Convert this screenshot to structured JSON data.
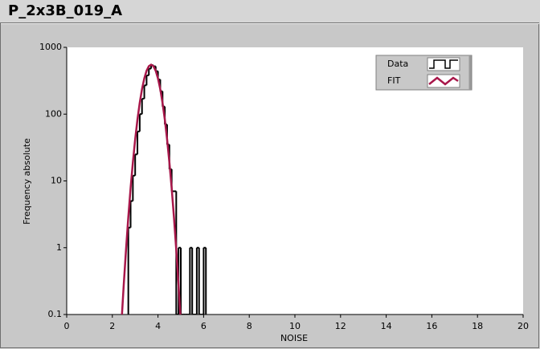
{
  "chart_data": {
    "type": "histogram",
    "title": "P_2x3B_019_A",
    "x_label": "NOISE",
    "y_label": "Frequency absolute",
    "xlim": [
      0,
      20
    ],
    "xticks": [
      0,
      2,
      4,
      6,
      8,
      10,
      12,
      14,
      16,
      18,
      20
    ],
    "ylim": [
      0.1,
      1000
    ],
    "yticks": [
      0.1,
      1,
      10,
      100,
      1000
    ],
    "ylog": true,
    "legend": "upper right",
    "series": [
      {
        "name": "Data",
        "color": "#000000",
        "bins": [
          2.7,
          2.8,
          2.9,
          3.0,
          3.1,
          3.2,
          3.3,
          3.4,
          3.5,
          3.6,
          3.7,
          3.8,
          3.9,
          4.0,
          4.1,
          4.2,
          4.3,
          4.4,
          4.5,
          4.6,
          4.7,
          4.8,
          4.9,
          5.0,
          5.1,
          5.2,
          5.3,
          5.4,
          5.5,
          5.6,
          5.7,
          5.8,
          5.9,
          6.0,
          6.1
        ],
        "values": [
          2,
          5,
          12,
          25,
          55,
          100,
          170,
          270,
          380,
          480,
          540,
          520,
          440,
          330,
          220,
          130,
          70,
          35,
          15,
          7,
          7,
          0,
          1,
          0,
          0,
          0,
          0,
          1,
          0,
          0,
          1,
          0,
          0,
          1
        ]
      },
      {
        "name": "FIT",
        "color": "#a8174a",
        "x": [
          2.4,
          2.5,
          2.6,
          2.7,
          2.8,
          2.9,
          3.0,
          3.1,
          3.2,
          3.3,
          3.4,
          3.5,
          3.6,
          3.7,
          3.8,
          3.9,
          4.0,
          4.1,
          4.2,
          4.3,
          4.4,
          4.5,
          4.6,
          4.7,
          4.8,
          4.9,
          5.0
        ],
        "values": [
          0.075,
          0.28,
          0.94,
          2.86,
          7.8,
          18.9,
          41.7,
          82.7,
          147,
          237,
          342,
          446,
          522,
          550,
          522,
          446,
          342,
          237,
          147,
          82.7,
          41.7,
          18.9,
          7.8,
          2.86,
          0.94,
          0.28,
          0.075
        ]
      }
    ]
  }
}
